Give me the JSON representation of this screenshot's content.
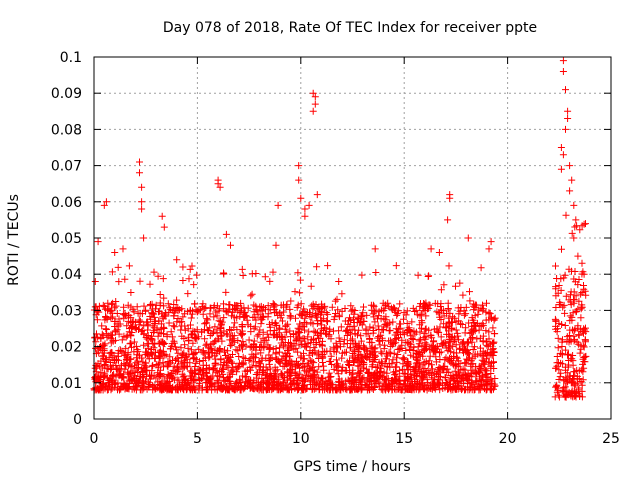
{
  "chart_data": {
    "type": "scatter",
    "title": "Day 078 of 2018, Rate Of TEC Index for receiver ppte",
    "xlabel": "GPS time / hours",
    "ylabel": "ROTI / TECUs",
    "xlim": [
      0,
      25
    ],
    "ylim": [
      0,
      0.1
    ],
    "x_ticks": [
      0,
      5,
      10,
      15,
      20,
      25
    ],
    "x_tick_labels": [
      "0",
      "5",
      "10",
      "15",
      "20",
      "25"
    ],
    "y_ticks": [
      0,
      0.01,
      0.02,
      0.03,
      0.04,
      0.05,
      0.06,
      0.07,
      0.08,
      0.09,
      0.1
    ],
    "y_tick_labels": [
      "0",
      "0.01",
      "0.02",
      "0.03",
      "0.04",
      "0.05",
      "0.06",
      "0.07",
      "0.08",
      "0.09",
      "0.1"
    ],
    "grid": true,
    "marker": "+",
    "color": "#ff0000",
    "segments": [
      {
        "x_start": 0.0,
        "x_end": 19.4,
        "baseline": [
          0.008,
          0.032
        ]
      },
      {
        "x_start": 22.3,
        "x_end": 23.8,
        "baseline": [
          0.006,
          0.042
        ]
      }
    ],
    "series": [
      {
        "name": "ROTI",
        "points": [
          [
            0.1,
            0.031
          ],
          [
            0.2,
            0.049
          ],
          [
            0.5,
            0.059
          ],
          [
            0.6,
            0.06
          ],
          [
            1.0,
            0.046
          ],
          [
            1.4,
            0.047
          ],
          [
            2.2,
            0.071
          ],
          [
            2.2,
            0.068
          ],
          [
            2.3,
            0.064
          ],
          [
            2.3,
            0.06
          ],
          [
            2.3,
            0.058
          ],
          [
            2.4,
            0.05
          ],
          [
            3.3,
            0.056
          ],
          [
            3.4,
            0.053
          ],
          [
            4.0,
            0.044
          ],
          [
            4.3,
            0.042
          ],
          [
            6.0,
            0.066
          ],
          [
            6.0,
            0.065
          ],
          [
            6.1,
            0.064
          ],
          [
            6.4,
            0.051
          ],
          [
            6.6,
            0.048
          ],
          [
            8.5,
            0.038
          ],
          [
            8.8,
            0.048
          ],
          [
            8.9,
            0.059
          ],
          [
            9.9,
            0.07
          ],
          [
            9.9,
            0.066
          ],
          [
            10.0,
            0.061
          ],
          [
            10.2,
            0.058
          ],
          [
            10.2,
            0.056
          ],
          [
            10.4,
            0.059
          ],
          [
            10.6,
            0.09
          ],
          [
            10.7,
            0.089
          ],
          [
            10.7,
            0.087
          ],
          [
            10.6,
            0.085
          ],
          [
            10.8,
            0.062
          ],
          [
            13.6,
            0.047
          ],
          [
            16.3,
            0.047
          ],
          [
            16.7,
            0.046
          ],
          [
            17.2,
            0.062
          ],
          [
            17.2,
            0.061
          ],
          [
            17.1,
            0.055
          ],
          [
            18.1,
            0.05
          ],
          [
            19.2,
            0.049
          ],
          [
            19.1,
            0.047
          ],
          [
            22.6,
            0.069
          ],
          [
            22.7,
            0.073
          ],
          [
            22.6,
            0.075
          ],
          [
            22.8,
            0.08
          ],
          [
            22.9,
            0.083
          ],
          [
            22.9,
            0.085
          ],
          [
            22.8,
            0.091
          ],
          [
            22.7,
            0.096
          ],
          [
            22.7,
            0.099
          ],
          [
            23.0,
            0.07
          ],
          [
            23.1,
            0.066
          ],
          [
            23.0,
            0.063
          ],
          [
            23.2,
            0.059
          ],
          [
            23.3,
            0.055
          ],
          [
            23.2,
            0.05
          ],
          [
            23.4,
            0.045
          ],
          [
            23.6,
            0.043
          ],
          [
            23.7,
            0.04
          ]
        ]
      }
    ]
  }
}
